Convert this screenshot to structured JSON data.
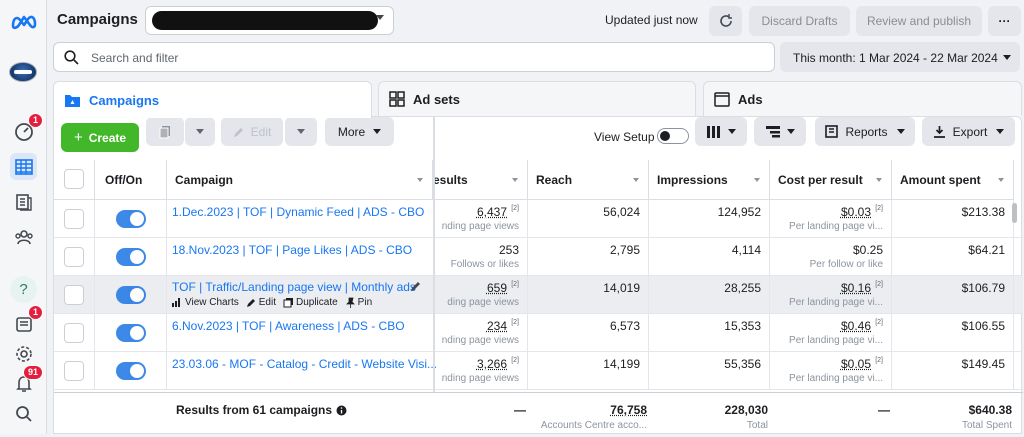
{
  "app": {
    "title": "Campaigns",
    "updated_status": "Updated just now"
  },
  "toolbar": {
    "discard": "Discard Drafts",
    "review": "Review and publish",
    "more": "···"
  },
  "search": {
    "placeholder": "Search and filter"
  },
  "date_range": {
    "label": "This month: 1 Mar 2024 - 22 Mar 2024"
  },
  "left_nav": {
    "badges": {
      "notifications_top": "1",
      "inbox": "1",
      "alerts": "91"
    }
  },
  "tabs": [
    {
      "label": "Campaigns",
      "active": true
    },
    {
      "label": "Ad sets",
      "active": false
    },
    {
      "label": "Ads",
      "active": false
    }
  ],
  "actions": {
    "create": "Create",
    "edit": "Edit",
    "more": "More",
    "view_setup": "View Setup",
    "reports": "Reports",
    "export": "Export"
  },
  "columns": {
    "off_on": "Off/On",
    "campaign": "Campaign",
    "results": "esults",
    "reach": "Reach",
    "impressions": "Impressions",
    "cost_per_result": "Cost per result",
    "amount_spent": "Amount spent"
  },
  "rows": [
    {
      "campaign": "1.Dec.2023 | TOF | Dynamic Feed | ADS - CBO",
      "results": "6,437",
      "results_sup": "[2]",
      "results_sub": "nding page views",
      "reach": "56,024",
      "impressions": "124,952",
      "cpr": "$0.03",
      "cpr_sup": "[2]",
      "cpr_sub": "Per landing page vi...",
      "spent": "$213.38"
    },
    {
      "campaign": "18.Nov.2023 | TOF | Page Likes | ADS - CBO",
      "results": "253",
      "results_sup": "",
      "results_sub": "Follows or likes",
      "reach": "2,795",
      "impressions": "4,114",
      "cpr": "$0.25",
      "cpr_sup": "",
      "cpr_sub": "Per follow or like",
      "spent": "$64.21"
    },
    {
      "campaign": "TOF | Traffic/Landing page view | Monthly ads",
      "results": "659",
      "results_sup": "[2]",
      "results_sub": "ding page views",
      "reach": "14,019",
      "impressions": "28,255",
      "cpr": "$0.16",
      "cpr_sup": "[2]",
      "cpr_sub": "Per landing page vi...",
      "spent": "$106.79"
    },
    {
      "campaign": "6.Nov.2023 | TOF | Awareness | ADS - CBO",
      "results": "234",
      "results_sup": "[2]",
      "results_sub": "nding page views",
      "reach": "6,573",
      "impressions": "15,353",
      "cpr": "$0.46",
      "cpr_sup": "[2]",
      "cpr_sub": "Per landing page vi...",
      "spent": "$106.55"
    },
    {
      "campaign": "23.03.06 - MOF - Catalog - Credit - Website Visi...",
      "results": "3,266",
      "results_sup": "[2]",
      "results_sub": "nding page views",
      "reach": "14,199",
      "impressions": "55,356",
      "cpr": "$0.05",
      "cpr_sup": "[2]",
      "cpr_sub": "Per landing page vi...",
      "spent": "$149.45"
    }
  ],
  "row_actions": {
    "view_charts": "View Charts",
    "edit": "Edit",
    "duplicate": "Duplicate",
    "pin": "Pin"
  },
  "totals": {
    "label": "Results from 61 campaigns",
    "results": "—",
    "reach": "76,758",
    "reach_sub": "Accounts Centre acco...",
    "impressions": "228,030",
    "impressions_sub": "Total",
    "cpr": "—",
    "spent": "$640.38",
    "spent_sub": "Total Spent"
  },
  "colors": {
    "accent": "#1877f2",
    "create_green": "#42b72a",
    "badge_red": "#e41e3f"
  }
}
